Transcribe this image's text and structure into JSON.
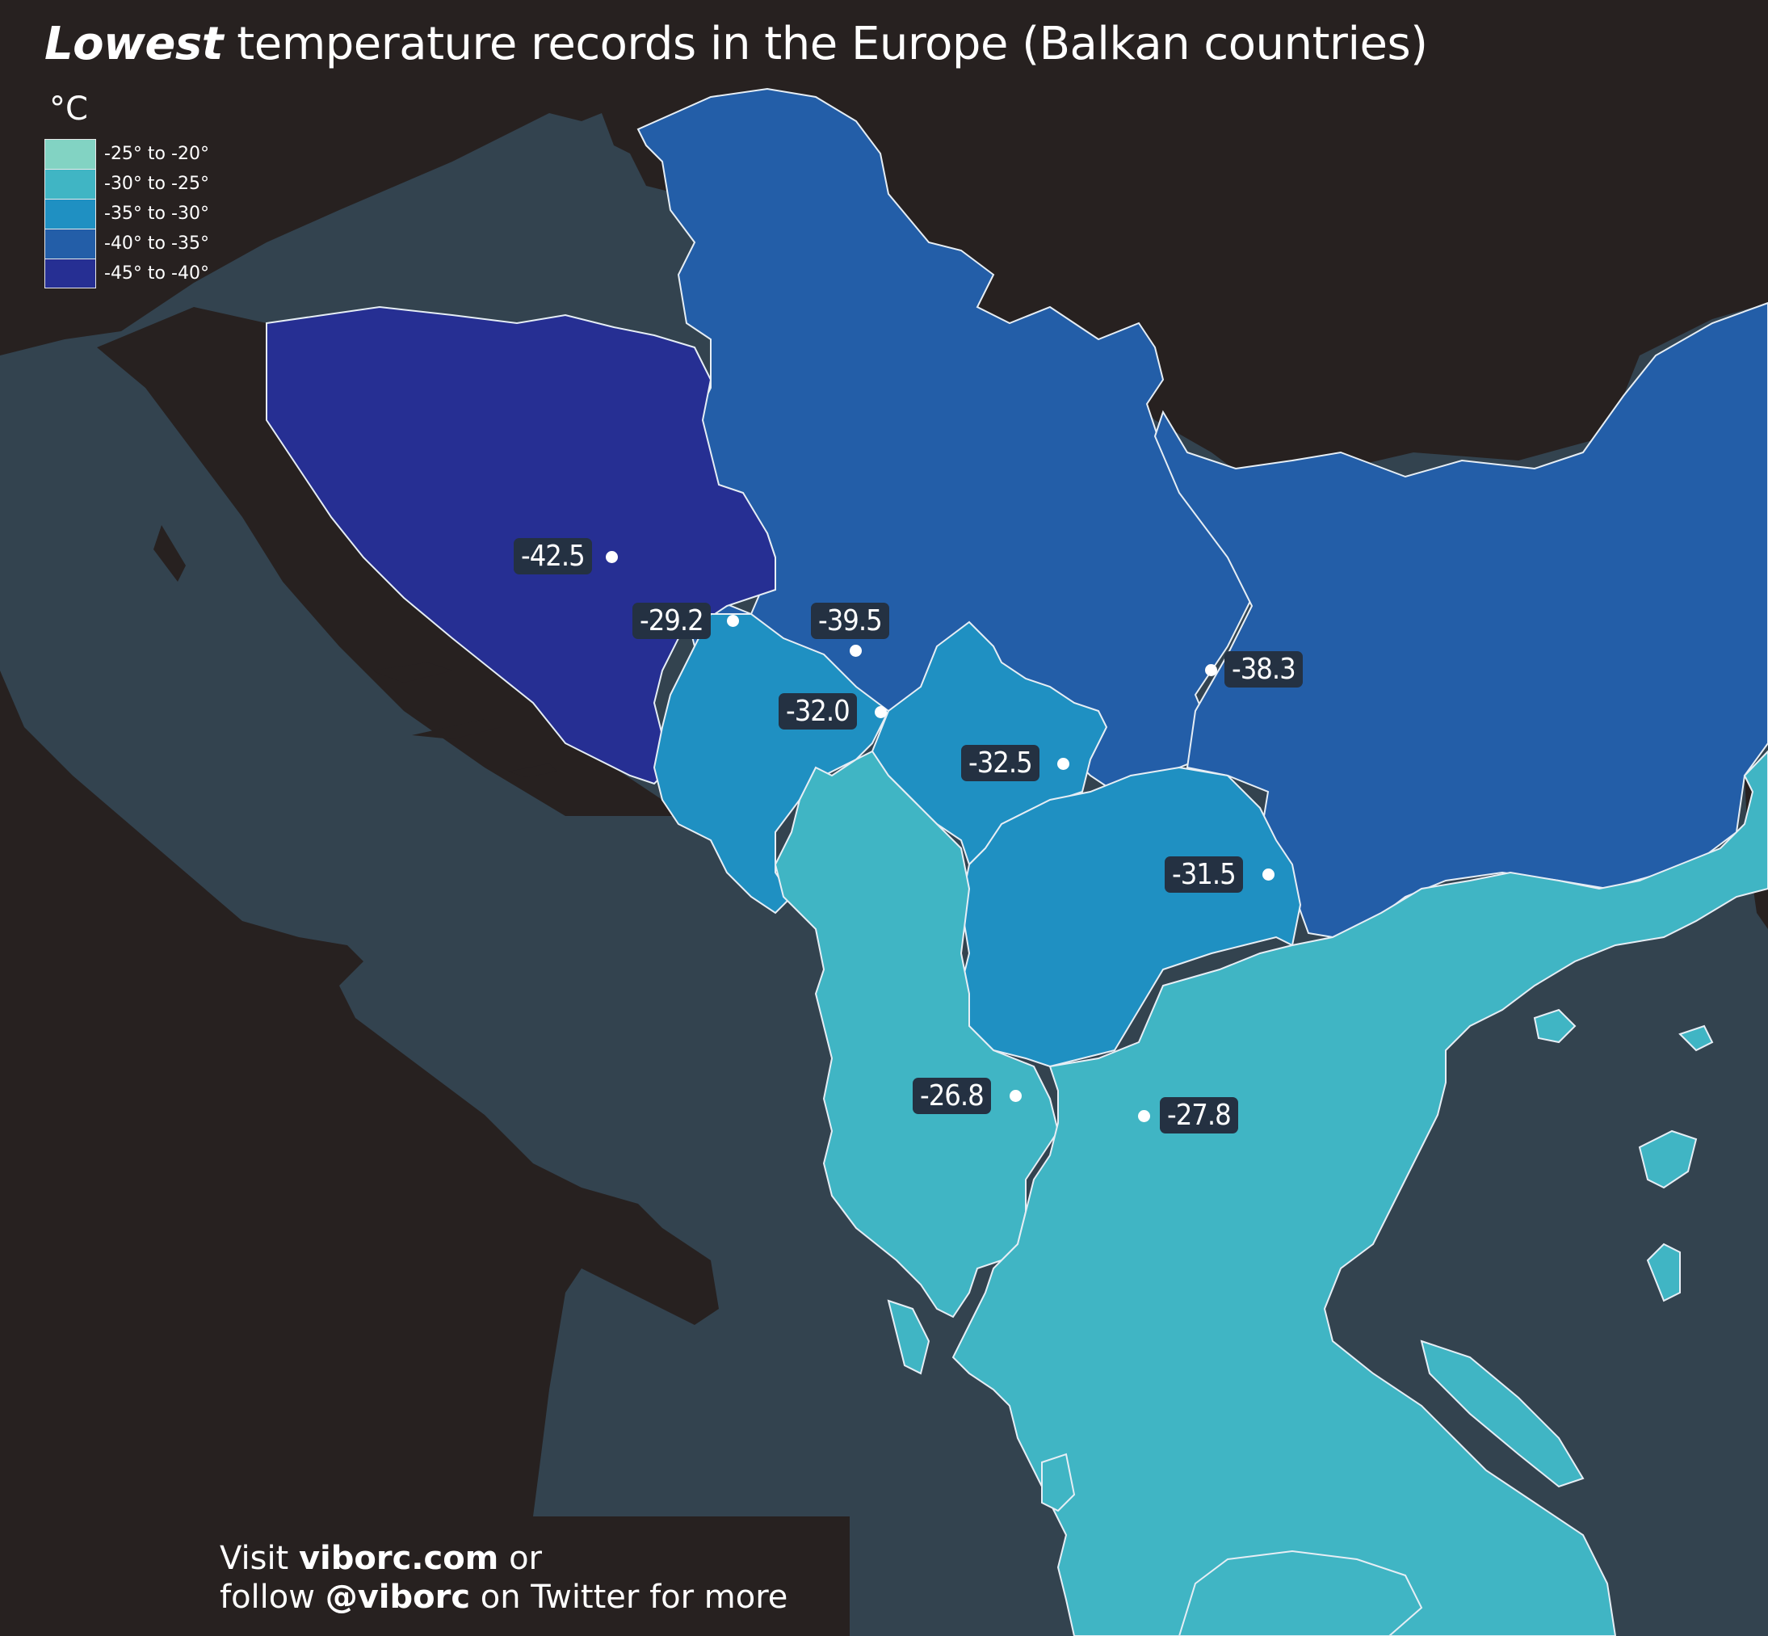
{
  "title": {
    "bold": "Lowest",
    "rest": " temperature records in the Europe (Balkan countries)"
  },
  "legend": {
    "unit": "°C",
    "items": [
      {
        "label": "-25° to -20°",
        "color": "#82d3c3"
      },
      {
        "label": "-30° to -25°",
        "color": "#40b5c4"
      },
      {
        "label": "-35° to -30°",
        "color": "#1f90c2"
      },
      {
        "label": "-40° to -35°",
        "color": "#235ea8"
      },
      {
        "label": "-45° to -40°",
        "color": "#262f93"
      }
    ]
  },
  "colors": {
    "sea": "#33434f",
    "land": "#272120",
    "border": "#e6eef5"
  },
  "markers": [
    {
      "label": "-42.5"
    },
    {
      "label": "-29.2"
    },
    {
      "label": "-39.5"
    },
    {
      "label": "-38.3"
    },
    {
      "label": "-32.0"
    },
    {
      "label": "-32.5"
    },
    {
      "label": "-31.5"
    },
    {
      "label": "-26.8"
    },
    {
      "label": "-27.8"
    }
  ],
  "footer": {
    "line1_pre": "Visit ",
    "line1_bold": "viborc.com",
    "line1_post": " or",
    "line2_pre": "follow ",
    "line2_bold": "@viborc",
    "line2_post": " on Twitter for more"
  }
}
